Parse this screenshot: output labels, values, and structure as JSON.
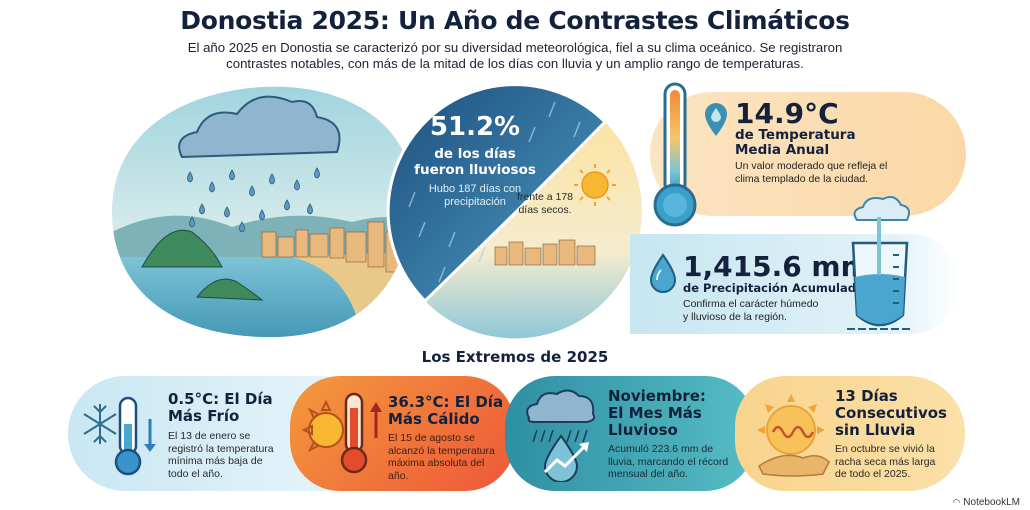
{
  "header": {
    "title": "Donostia 2025: Un Año de Contrastes Climáticos",
    "subtitle_line1": "El año 2025 en Donostia se caracterizó por su diversidad meteorológica, fiel a su clima oceánico. Se registraron",
    "subtitle_line2": "contrastes notables, con más de la mitad de los días con lluvia y un amplio rango de temperaturas."
  },
  "rain_split": {
    "percent": "51.2%",
    "label_line1": "de los días",
    "label_line2": "fueron lluviosos",
    "detail_line1": "Hubo 187 días con",
    "detail_line2": "precipitación",
    "dry_line1": "frente a 178",
    "dry_line2": "días secos.",
    "rainy_days": 187,
    "dry_days": 178
  },
  "stats": [
    {
      "value": "14.9°C",
      "label_line1": "de Temperatura",
      "label_line2": "Media Anual",
      "desc_line1": "Un valor moderado que refleja el",
      "desc_line2": "clima templado de la ciudad.",
      "icon": "location-pin-drop-icon"
    },
    {
      "value": "1,415.6 mm",
      "label": "de Precipitación Acumulada",
      "desc_line1": "Confirma el carácter húmedo",
      "desc_line2": "y lluvioso de la región.",
      "icon": "water-drop-icon"
    }
  ],
  "extremes": {
    "section_title": "Los Extremos de 2025",
    "items": [
      {
        "title_line1": "0.5°C: El Día",
        "title_line2": "Más Frío",
        "desc": [
          "El 13 de enero se",
          "registró la temperatura",
          "mínima más baja de",
          "todo el año."
        ],
        "icon": "snowflake-thermometer-icon",
        "color": "#c9e7f3"
      },
      {
        "title_line1": "36.3°C: El Día",
        "title_line2": "Más Cálido",
        "desc": [
          "El 15 de agosto se",
          "alcanzó la temperatura",
          "máxima absoluta del",
          "año."
        ],
        "icon": "sun-thermometer-icon",
        "color": "#f06a3a"
      },
      {
        "title_line1": "Noviembre:",
        "title_line2": "El Mes Más",
        "title_line3": "Lluvioso",
        "desc": [
          "Acumuló 223.6 mm de",
          "lluvia, marcando el récord",
          "mensual del año."
        ],
        "icon": "rain-cloud-trend-icon",
        "color": "#3a9fae"
      },
      {
        "title_line1": "13 Días",
        "title_line2": "Consecutivos",
        "title_line3": "sin Lluvia",
        "desc": [
          "En octubre se vivió la",
          "racha seca más larga",
          "de todo el 2025."
        ],
        "icon": "sun-desert-icon",
        "color": "#f8d48d"
      }
    ]
  },
  "footer": {
    "brand": "NotebookLM"
  }
}
